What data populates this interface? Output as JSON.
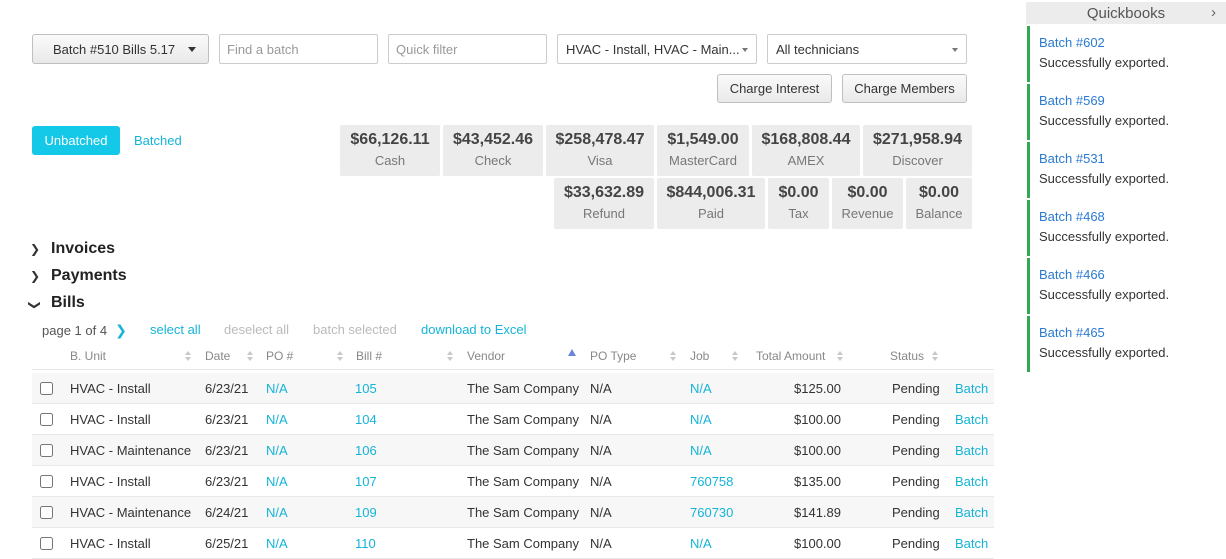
{
  "toolbar": {
    "batch_selected": "Batch #510 Bills 5.17",
    "find_batch_placeholder": "Find a batch",
    "quick_filter_placeholder": "Quick filter",
    "business_unit_filter": "HVAC - Install, HVAC - Main...",
    "technician_filter": "All technicians",
    "charge_interest_label": "Charge Interest",
    "charge_members_label": "Charge Members"
  },
  "tabs": {
    "unbatched": "Unbatched",
    "batched": "Batched"
  },
  "stats": [
    {
      "value": "$66,126.11",
      "label": "Cash"
    },
    {
      "value": "$43,452.46",
      "label": "Check"
    },
    {
      "value": "$258,478.47",
      "label": "Visa"
    },
    {
      "value": "$1,549.00",
      "label": "MasterCard"
    },
    {
      "value": "$168,808.44",
      "label": "AMEX"
    },
    {
      "value": "$271,958.94",
      "label": "Discover"
    },
    {
      "value": "$33,632.89",
      "label": "Refund"
    },
    {
      "value": "$844,006.31",
      "label": "Paid"
    },
    {
      "value": "$0.00",
      "label": "Tax"
    },
    {
      "value": "$0.00",
      "label": "Revenue"
    },
    {
      "value": "$0.00",
      "label": "Balance"
    }
  ],
  "sections": {
    "invoices": "Invoices",
    "payments": "Payments",
    "bills": "Bills"
  },
  "pager": {
    "page_text": "page 1 of 4",
    "select_all": "select all",
    "deselect_all": "deselect all",
    "batch_selected": "batch selected",
    "download_excel": "download to Excel"
  },
  "table": {
    "columns": {
      "bunit": "B. Unit",
      "date": "Date",
      "po": "PO #",
      "bill": "Bill #",
      "vendor": "Vendor",
      "potype": "PO Type",
      "job": "Job",
      "total": "Total Amount",
      "status": "Status"
    },
    "rows": [
      {
        "bunit": "HVAC - Install",
        "date": "6/23/21",
        "po": "N/A",
        "bill": "105",
        "vendor": "The Sam Company",
        "potype": "N/A",
        "job": "N/A",
        "total": "$125.00",
        "status": "Pending",
        "action": "Batch"
      },
      {
        "bunit": "HVAC - Install",
        "date": "6/23/21",
        "po": "N/A",
        "bill": "104",
        "vendor": "The Sam Company",
        "potype": "N/A",
        "job": "N/A",
        "total": "$100.00",
        "status": "Pending",
        "action": "Batch"
      },
      {
        "bunit": "HVAC - Maintenance",
        "date": "6/23/21",
        "po": "N/A",
        "bill": "106",
        "vendor": "The Sam Company",
        "potype": "N/A",
        "job": "N/A",
        "total": "$100.00",
        "status": "Pending",
        "action": "Batch"
      },
      {
        "bunit": "HVAC - Install",
        "date": "6/23/21",
        "po": "N/A",
        "bill": "107",
        "vendor": "The Sam Company",
        "potype": "N/A",
        "job": "760758",
        "total": "$135.00",
        "status": "Pending",
        "action": "Batch"
      },
      {
        "bunit": "HVAC - Maintenance",
        "date": "6/24/21",
        "po": "N/A",
        "bill": "109",
        "vendor": "The Sam Company",
        "potype": "N/A",
        "job": "760730",
        "total": "$141.89",
        "status": "Pending",
        "action": "Batch"
      },
      {
        "bunit": "HVAC - Install",
        "date": "6/25/21",
        "po": "N/A",
        "bill": "110",
        "vendor": "The Sam Company",
        "potype": "N/A",
        "job": "N/A",
        "total": "$100.00",
        "status": "Pending",
        "action": "Batch"
      }
    ]
  },
  "right_panel": {
    "title": "Quickbooks",
    "notifications": [
      {
        "title": "Batch #602",
        "message": "Successfully exported."
      },
      {
        "title": "Batch #569",
        "message": "Successfully exported."
      },
      {
        "title": "Batch #531",
        "message": "Successfully exported."
      },
      {
        "title": "Batch #468",
        "message": "Successfully exported."
      },
      {
        "title": "Batch #466",
        "message": "Successfully exported."
      },
      {
        "title": "Batch #465",
        "message": "Successfully exported."
      }
    ]
  },
  "colors": {
    "accent": "#14c8e8",
    "link": "#14b4d8",
    "success_bar": "#32a852",
    "notif_link": "#2a7ad2"
  }
}
